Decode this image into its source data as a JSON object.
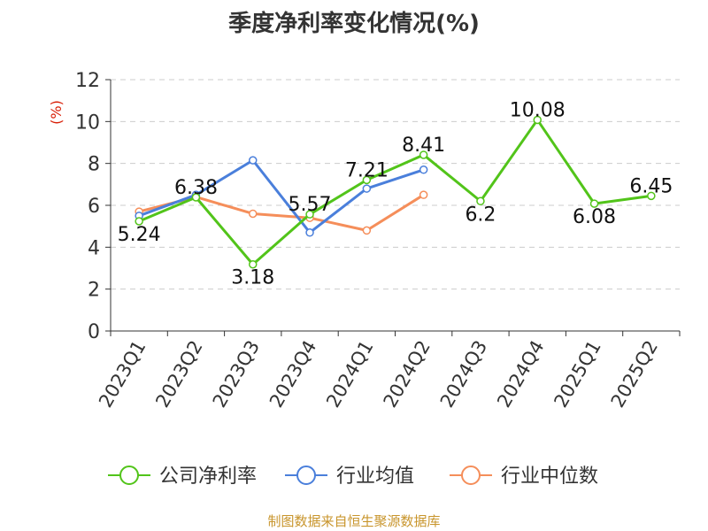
{
  "title": "季度净利率变化情况(%)",
  "source": "制图数据来自恒生聚源数据库",
  "colors": {
    "company": "#52c41a",
    "industry_avg": "#4a7fdb",
    "industry_median": "#f58e5a",
    "grid": "#cccccc",
    "axis": "#333333",
    "unit": "#d81e06"
  },
  "chart_data": {
    "type": "line",
    "title": "季度净利率变化情况(%)",
    "ylabel": "(%)",
    "xlabel": "",
    "categories": [
      "2023Q1",
      "2023Q2",
      "2023Q3",
      "2023Q4",
      "2024Q1",
      "2024Q2",
      "2024Q3",
      "2024Q4",
      "2025Q1",
      "2025Q2"
    ],
    "ylim": [
      0,
      12
    ],
    "yticks": [
      0,
      2,
      4,
      6,
      8,
      10,
      12
    ],
    "grid": true,
    "legend_position": "bottom",
    "series": [
      {
        "name": "公司净利率",
        "color": "#52c41a",
        "show_labels": true,
        "values": [
          5.24,
          6.38,
          3.18,
          5.57,
          7.21,
          8.41,
          6.2,
          10.08,
          6.08,
          6.45
        ],
        "labels": [
          "5.24",
          "6.38",
          "3.18",
          "5.57",
          "7.21",
          "8.41",
          "6.2",
          "10.08",
          "6.08",
          "6.45"
        ]
      },
      {
        "name": "行业均值",
        "color": "#4a7fdb",
        "show_labels": false,
        "values": [
          5.5,
          6.5,
          8.15,
          4.7,
          6.8,
          7.7,
          null,
          null,
          null,
          null
        ]
      },
      {
        "name": "行业中位数",
        "color": "#f58e5a",
        "show_labels": false,
        "values": [
          5.7,
          6.4,
          5.6,
          5.4,
          4.8,
          6.5,
          null,
          null,
          null,
          null
        ]
      }
    ]
  }
}
